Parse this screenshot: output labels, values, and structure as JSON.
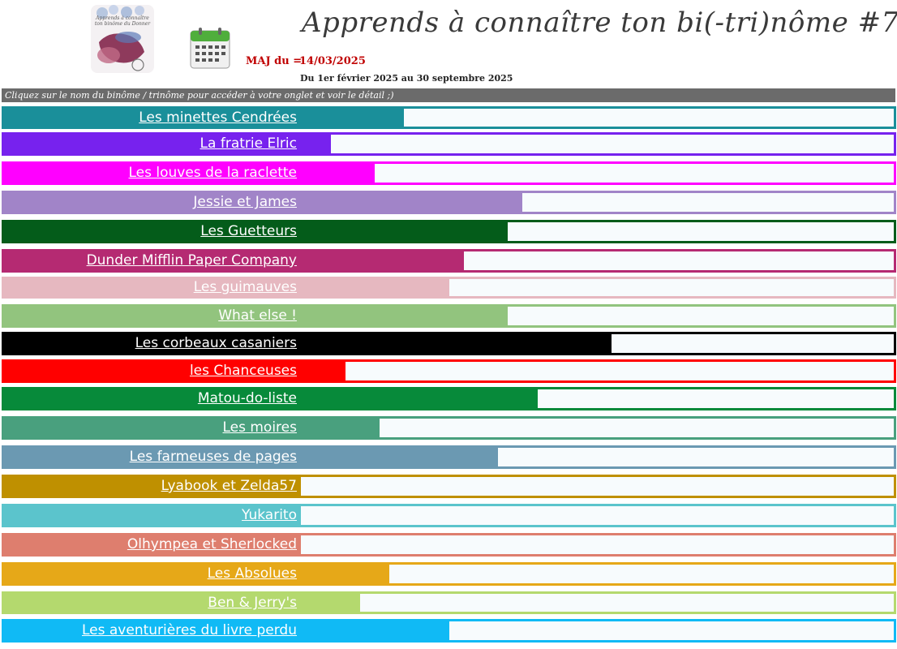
{
  "header": {
    "title": "Apprends à connaître ton bi(-tri)nôme #7",
    "logo_text": "Apprends à connaître ton binôme du Donner",
    "logo_icon": "challenge-logo",
    "calendar_icon": "calendar-icon",
    "maj_label": "MAJ du =",
    "maj_date": "14/03/2025",
    "period": "Du 1er février 2025 au 30 septembre 2025"
  },
  "instruction": "Cliquez sur le nom du binôme / trinôme pour accéder à votre onglet et voir le détail ;)",
  "progress_scale_max": 1,
  "teams": [
    {
      "name": "Les minettes Cendrées",
      "color": "#1a8f9a",
      "progress": 0.174
    },
    {
      "name": "La fratrie Elric",
      "color": "#7722ee",
      "progress": 0.05
    },
    {
      "name": "Les louves de la raclette",
      "color": "#ff00ff",
      "progress": 0.125
    },
    {
      "name": "Jessie et James",
      "color": "#a184c8",
      "progress": 0.374
    },
    {
      "name": "Les Guetteurs",
      "color": "#045c1a",
      "progress": 0.349
    },
    {
      "name": "Dunder Mifflin Paper Company",
      "color": "#b52a72",
      "progress": 0.275
    },
    {
      "name": "Les guimauves",
      "color": "#e6b8c0",
      "progress": 0.25
    },
    {
      "name": "What else !",
      "color": "#92c47e",
      "progress": 0.349
    },
    {
      "name": "Les corbeaux casaniers",
      "color": "#000000",
      "progress": 0.524
    },
    {
      "name": "les Chanceuses",
      "color": "#ff0000",
      "progress": 0.075
    },
    {
      "name": "Matou-do-liste",
      "color": "#078a3a",
      "progress": 0.399
    },
    {
      "name": "Les moires",
      "color": "#49a07e",
      "progress": 0.133
    },
    {
      "name": "Les farmeuses de pages",
      "color": "#6b99b2",
      "progress": 0.333
    },
    {
      "name": "Lyabook et Zelda57",
      "color": "#bf9000",
      "progress": 0
    },
    {
      "name": "Yukarito",
      "color": "#5bc4cc",
      "progress": 0
    },
    {
      "name": "Olhympea et Sherlocked",
      "color": "#de7e6e",
      "progress": 0
    },
    {
      "name": "Les Absolues",
      "color": "#e6a818",
      "progress": 0.149
    },
    {
      "name": "Ben & Jerry's",
      "color": "#b4d96e",
      "progress": 0.1
    },
    {
      "name": "Les aventurières du livre perdu",
      "color": "#10baf5",
      "progress": 0.25
    }
  ]
}
